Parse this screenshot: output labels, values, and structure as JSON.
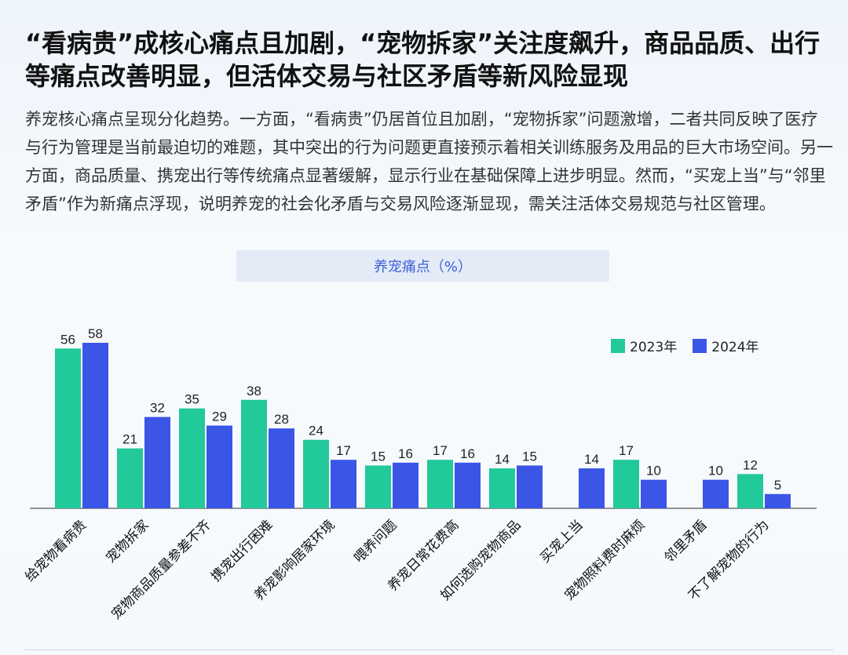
{
  "headline": "“看病贵”成核心痛点且加剧，“宠物拆家”关注度飙升，商品品质、出行等痛点改善明显，但活体交易与社区矛盾等新风险显现",
  "lead": "养宠核心痛点呈现分化趋势。一方面，“看病贵”仍居首位且加剧，“宠物拆家”问题激增，二者共同反映了医疗与行为管理是当前最迫切的难题，其中突出的行为问题更直接预示着相关训练服务及用品的巨大市场空间。另一方面，商品质量、携宠出行等传统痛点显著缓解，显示行业在基础保障上进步明显。然而，“买宠上当”与“邻里矛盾”作为新痛点浮现，说明养宠的社会化矛盾与交易风险逐渐显现，需关注活体交易规范与社区管理。",
  "colors": {
    "s2023": "#22c99a",
    "s2024": "#3b55e6",
    "text": "#222222"
  },
  "chart_data": {
    "type": "bar",
    "title": "养宠痛点（%）",
    "categories": [
      "给宠物看病贵",
      "宠物拆家",
      "宠物商品质量参差不齐",
      "携宠出行困难",
      "养宠影响居家环境",
      "喂养问题",
      "养宠日常花费高",
      "如何选购宠物商品",
      "买宠上当",
      "宠物照料费时麻烦",
      "邻里矛盾",
      "不了解宠物的行为"
    ],
    "series": [
      {
        "name": "2023年",
        "values": [
          56,
          21,
          35,
          38,
          24,
          15,
          17,
          14,
          null,
          17,
          null,
          12
        ]
      },
      {
        "name": "2024年",
        "values": [
          58,
          32,
          29,
          28,
          17,
          16,
          16,
          15,
          14,
          10,
          10,
          5
        ]
      }
    ],
    "ylim": [
      0,
      58
    ],
    "grid": false,
    "legend": "top-right"
  }
}
